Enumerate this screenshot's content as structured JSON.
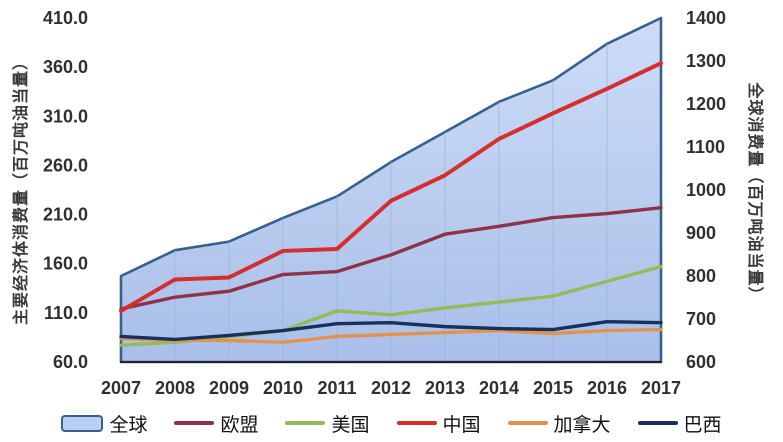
{
  "chart_data": {
    "type": "area",
    "title": "",
    "x": [
      2007,
      2008,
      2009,
      2010,
      2011,
      2012,
      2013,
      2014,
      2015,
      2016,
      2017
    ],
    "left_axis": {
      "label": "主要经济体消费量（百万吨油当量）",
      "min": 60,
      "max": 410,
      "tick_step": 50,
      "ticks": [
        "410.0",
        "360.0",
        "310.0",
        "260.0",
        "210.0",
        "160.0",
        "110.0",
        "60.0"
      ]
    },
    "right_axis": {
      "label": "全球消费量（百万吨油当量）",
      "min": 600,
      "max": 1400,
      "tick_step": 100,
      "ticks": [
        "1400",
        "1300",
        "1200",
        "1100",
        "1000",
        "900",
        "800",
        "700",
        "600"
      ]
    },
    "grid": {
      "vertical": true,
      "horizontal": false
    },
    "legend_position": "bottom",
    "series": [
      {
        "id": "global",
        "name": "全球",
        "type": "area",
        "axis": "right",
        "color": "#36618f",
        "fill_top": "#cddcf7",
        "fill_bottom": "#a9bfe9",
        "values": [
          800,
          860,
          880,
          935,
          985,
          1065,
          1135,
          1205,
          1255,
          1340,
          1400
        ]
      },
      {
        "id": "eu",
        "name": "欧盟",
        "type": "line",
        "axis": "left",
        "color": "#8e3347",
        "values": [
          114,
          126,
          132,
          149,
          152,
          169,
          190,
          198,
          207,
          211,
          217
        ]
      },
      {
        "id": "us",
        "name": "美国",
        "type": "line",
        "axis": "left",
        "color": "#93bb58",
        "values": [
          77,
          80,
          86,
          92,
          112,
          108,
          115,
          121,
          127,
          142,
          157
        ]
      },
      {
        "id": "china",
        "name": "中国",
        "type": "line",
        "axis": "left",
        "color": "#d42e2e",
        "values": [
          112,
          144,
          146,
          173,
          175,
          224,
          250,
          287,
          313,
          338,
          364
        ]
      },
      {
        "id": "canada",
        "name": "加拿大",
        "type": "line",
        "axis": "left",
        "color": "#e2924c",
        "values": [
          84,
          82,
          82,
          80,
          86,
          88,
          90,
          92,
          89,
          92,
          93
        ]
      },
      {
        "id": "brazil",
        "name": "巴西",
        "type": "line",
        "axis": "left",
        "color": "#16325c",
        "values": [
          86,
          83,
          87,
          92,
          99,
          100,
          96,
          94,
          93,
          101,
          100
        ]
      }
    ],
    "colors": {
      "axis_line": "#262626",
      "gridline": "#9db3da",
      "tick_text": "#303030",
      "legend_text": "#111111",
      "area_border": "#36618f",
      "area_fill": "#bccff2"
    }
  }
}
